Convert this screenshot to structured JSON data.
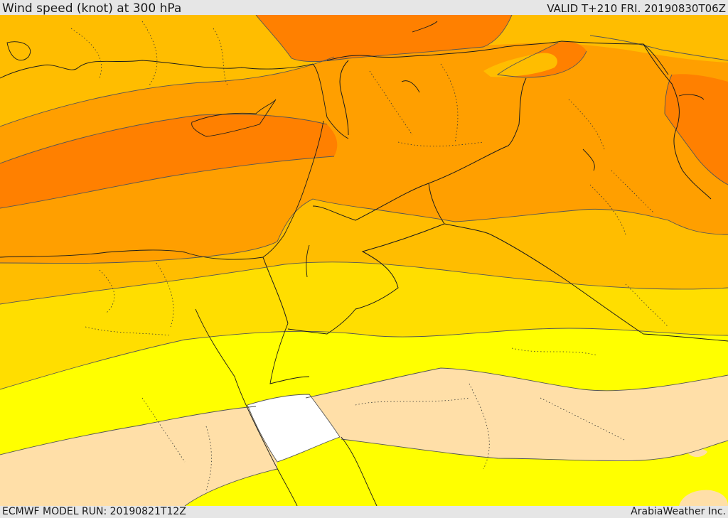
{
  "header": {
    "title": "Wind speed (knot) at 300 hPa",
    "valid": "VALID T+210 FRI. 20190830T06Z"
  },
  "footer": {
    "model_run": "ECMWF MODEL RUN: 20190821T12Z",
    "credit": "ArabiaWeather Inc."
  },
  "colors": {
    "band_highest": "#ff8000",
    "band_high": "#ff9f00",
    "band_upper": "#ffbd00",
    "band_mid": "#ffde00",
    "band_low": "#ffff00",
    "band_lower": "#ffdfa8",
    "band_lowest": "#ffffff",
    "contour": "#555555",
    "border": "#1a1a1a"
  }
}
